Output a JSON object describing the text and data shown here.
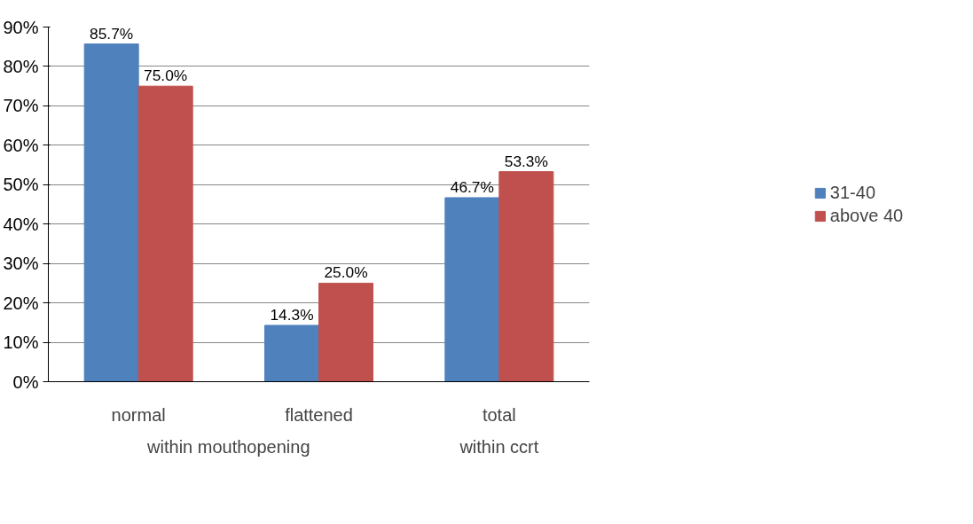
{
  "chart_data": {
    "type": "bar",
    "categories": [
      "normal",
      "flattened",
      "total"
    ],
    "series": [
      {
        "name": "31-40",
        "color": "#4f81bd",
        "values": [
          85.7,
          14.3,
          46.7
        ],
        "value_labels": [
          "85.7%",
          "14.3%",
          "46.7%"
        ]
      },
      {
        "name": "above 40",
        "color": "#c0504d",
        "values": [
          75.0,
          25.0,
          53.3
        ],
        "value_labels": [
          "75.0%",
          "25.0%",
          "53.3%"
        ]
      }
    ],
    "ylim": [
      0,
      90
    ],
    "yticks": [
      {
        "value": 0,
        "label": "0%"
      },
      {
        "value": 10,
        "label": "10%"
      },
      {
        "value": 20,
        "label": "20%"
      },
      {
        "value": 30,
        "label": "30%"
      },
      {
        "value": 40,
        "label": "40%"
      },
      {
        "value": 50,
        "label": "50%"
      },
      {
        "value": 60,
        "label": "60%"
      },
      {
        "value": 70,
        "label": "70%"
      },
      {
        "value": 80,
        "label": "80%"
      },
      {
        "value": 90,
        "label": "90%"
      }
    ],
    "annotations": [
      "within mouthopening",
      "within ccrt"
    ],
    "grid": "y",
    "legend": "right"
  }
}
